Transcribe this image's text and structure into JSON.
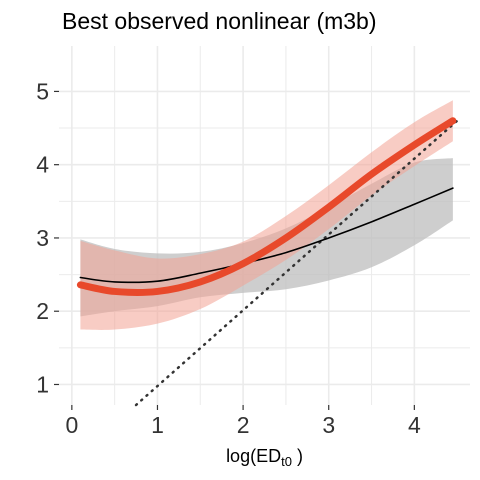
{
  "chart_data": {
    "type": "line",
    "title": "Best observed nonlinear (m3b)",
    "xlabel_base": "log(ED",
    "xlabel_sub": "t0",
    "xlabel_tail": " )",
    "ylabel": "",
    "xlim": [
      -0.15,
      4.65
    ],
    "ylim": [
      0.72,
      5.62
    ],
    "x_ticks": [
      0,
      1,
      2,
      3,
      4
    ],
    "x_tick_labels": [
      "0",
      "1",
      "2",
      "3",
      "4"
    ],
    "y_ticks": [
      1,
      2,
      3,
      4,
      5
    ],
    "y_tick_labels": [
      "1",
      "2",
      "3",
      "4",
      "5"
    ],
    "grid": true,
    "colors": {
      "black_line": "#000000",
      "black_band": "#bdbdbd",
      "orange_line": "#e8492b",
      "orange_band": "#f3a393",
      "reference": "#333333",
      "grid": "#ebebeb"
    },
    "series": [
      {
        "style": "thin-black-with-gray-band",
        "x": [
          0.1,
          0.5,
          1.0,
          1.5,
          2.0,
          2.5,
          3.0,
          3.5,
          4.0,
          4.45
        ],
        "y": [
          2.46,
          2.4,
          2.41,
          2.52,
          2.65,
          2.8,
          3.0,
          3.22,
          3.46,
          3.68
        ],
        "lower": [
          1.93,
          2.0,
          2.07,
          2.19,
          2.25,
          2.3,
          2.42,
          2.6,
          2.9,
          3.24
        ],
        "upper": [
          2.98,
          2.85,
          2.79,
          2.81,
          2.93,
          3.13,
          3.42,
          3.74,
          4.03,
          4.09
        ]
      },
      {
        "style": "thick-orange-with-orange-band",
        "x": [
          0.1,
          0.5,
          1.0,
          1.5,
          2.0,
          2.5,
          3.0,
          3.5,
          4.0,
          4.45
        ],
        "y": [
          2.36,
          2.27,
          2.27,
          2.4,
          2.65,
          3.0,
          3.42,
          3.87,
          4.27,
          4.6
        ],
        "lower": [
          1.75,
          1.75,
          1.83,
          2.03,
          2.35,
          2.7,
          3.12,
          3.58,
          3.98,
          4.32
        ],
        "upper": [
          2.96,
          2.83,
          2.72,
          2.78,
          2.95,
          3.3,
          3.72,
          4.17,
          4.58,
          4.88
        ]
      }
    ],
    "reference_line": {
      "style": "dotted",
      "x": [
        0.75,
        4.5
      ],
      "y": [
        0.72,
        4.6
      ]
    }
  }
}
